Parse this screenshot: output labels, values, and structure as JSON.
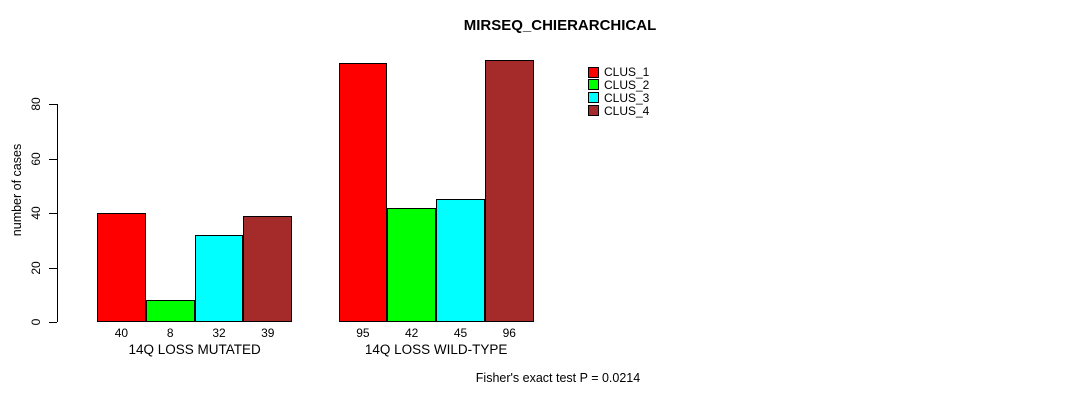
{
  "chart_data": {
    "type": "bar",
    "title": "MIRSEQ_CHIERARCHICAL",
    "ylabel": "number of cases",
    "xlabel": "",
    "categories": [
      "14Q LOSS MUTATED",
      "14Q LOSS WILD-TYPE"
    ],
    "series": [
      {
        "name": "CLUS_1",
        "color": "#FF0000",
        "values": [
          40,
          95
        ]
      },
      {
        "name": "CLUS_2",
        "color": "#00FF00",
        "values": [
          8,
          42
        ]
      },
      {
        "name": "CLUS_3",
        "color": "#00FFFF",
        "values": [
          32,
          45
        ]
      },
      {
        "name": "CLUS_4",
        "color": "#A52A2A",
        "values": [
          39,
          96
        ]
      }
    ],
    "yticks": [
      0,
      20,
      40,
      60,
      80
    ],
    "ylim": [
      0,
      100
    ],
    "grid": false,
    "legend_position": "top-right",
    "bar_value_labels_shown": true,
    "annotation": "Fisher's exact test P = 0.0214"
  }
}
